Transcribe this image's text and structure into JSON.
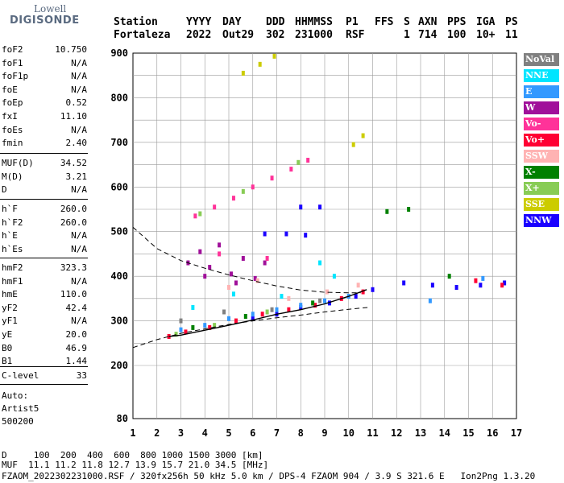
{
  "logo": {
    "top": "Lowell",
    "bottom": "DIGISONDE"
  },
  "header": {
    "labels": [
      "Station",
      "YYYY",
      "DAY",
      "DDD",
      "HHMMSS",
      "P1",
      "FFS",
      "S",
      "AXN",
      "PPS",
      "IGA",
      "PS"
    ],
    "values": [
      "Fortaleza",
      "2022",
      "Out29",
      "302",
      "231000",
      "RSF",
      "",
      "1",
      "714",
      "100",
      "10+",
      "11"
    ]
  },
  "params_group1": [
    {
      "name": "foF2",
      "value": "10.750"
    },
    {
      "name": "foF1",
      "value": "N/A"
    },
    {
      "name": "foF1p",
      "value": "N/A"
    },
    {
      "name": "foE",
      "value": "N/A"
    },
    {
      "name": "foEp",
      "value": "0.52"
    },
    {
      "name": "fxI",
      "value": "11.10"
    },
    {
      "name": "foEs",
      "value": "N/A"
    },
    {
      "name": "fmin",
      "value": "2.40"
    }
  ],
  "params_group2": [
    {
      "name": "MUF(D)",
      "value": "34.52"
    },
    {
      "name": "M(D)",
      "value": "3.21"
    },
    {
      "name": "D",
      "value": "N/A"
    }
  ],
  "params_group3": [
    {
      "name": "h`F",
      "value": "260.0"
    },
    {
      "name": "h`F2",
      "value": "260.0"
    },
    {
      "name": "h`E",
      "value": "N/A"
    },
    {
      "name": "h`Es",
      "value": "N/A"
    }
  ],
  "params_group4": [
    {
      "name": "hmF2",
      "value": "323.3"
    },
    {
      "name": "hmF1",
      "value": "N/A"
    },
    {
      "name": "hmE",
      "value": "110.0"
    },
    {
      "name": "yF2",
      "value": "42.4"
    },
    {
      "name": "yF1",
      "value": "N/A"
    },
    {
      "name": "yE",
      "value": "20.0"
    },
    {
      "name": "B0",
      "value": "46.9"
    },
    {
      "name": "B1",
      "value": "1.44"
    }
  ],
  "params_group5": [
    {
      "name": "C-level",
      "value": "33"
    }
  ],
  "auto_info": [
    "Auto:",
    "Artist5",
    "500200"
  ],
  "legend": [
    {
      "label": "NoVal",
      "color": "#808080"
    },
    {
      "label": "NNE",
      "color": "#00e5ff"
    },
    {
      "label": "E",
      "color": "#3399ff"
    },
    {
      "label": "W",
      "color": "#a0109a"
    },
    {
      "label": "Vo-",
      "color": "#ff3399"
    },
    {
      "label": "Vo+",
      "color": "#ff0033"
    },
    {
      "label": "SSW",
      "color": "#ffb3b3"
    },
    {
      "label": "X-",
      "color": "#008000"
    },
    {
      "label": "X+",
      "color": "#88cc55"
    },
    {
      "label": "SSE",
      "color": "#cccc00"
    },
    {
      "label": "NNW",
      "color": "#1a00ff"
    }
  ],
  "footer": {
    "d_row": "D     100  200  400  600  800 1000 1500 3000 [km]",
    "muf_row": "MUF  11.1 11.2 11.8 12.7 13.9 15.7 21.0 34.5 [MHz]",
    "info_row": "FZAOM_2022302231000.RSF / 320fx256h 50 kHz 5.0 km / DPS-4 FZAOM 904 / 3.9 S 321.6 E   Ion2Png 1.3.20"
  },
  "chart_data": {
    "type": "scatter",
    "title": "",
    "xlabel": "",
    "ylabel": "",
    "xlim": [
      1,
      17
    ],
    "ylim": [
      80,
      900
    ],
    "x_ticks": [
      "1",
      "2",
      "3",
      "4",
      "5",
      "6",
      "7",
      "8",
      "9",
      "10",
      "11",
      "12",
      "13",
      "14",
      "15",
      "16",
      "17"
    ],
    "y_ticks": [
      "80",
      "200",
      "300",
      "400",
      "500",
      "600",
      "700",
      "800",
      "900"
    ],
    "grid": true,
    "series": [
      {
        "name": "W",
        "color": "#a0109a",
        "points": [
          [
            3.3,
            430
          ],
          [
            3.8,
            455
          ],
          [
            4.2,
            420
          ],
          [
            4.6,
            470
          ],
          [
            5.1,
            405
          ],
          [
            5.6,
            440
          ],
          [
            6.1,
            395
          ],
          [
            6.5,
            430
          ],
          [
            4.0,
            400
          ],
          [
            5.3,
            385
          ]
        ]
      },
      {
        "name": "NNW",
        "color": "#1a00ff",
        "points": [
          [
            6.0,
            305
          ],
          [
            7.0,
            315
          ],
          [
            8.0,
            330
          ],
          [
            9.2,
            340
          ],
          [
            10.3,
            355
          ],
          [
            11.0,
            370
          ],
          [
            12.3,
            385
          ],
          [
            13.5,
            380
          ],
          [
            14.5,
            375
          ],
          [
            15.5,
            380
          ],
          [
            16.5,
            385
          ],
          [
            8.0,
            555
          ],
          [
            8.8,
            555
          ],
          [
            6.5,
            495
          ],
          [
            7.4,
            495
          ],
          [
            8.2,
            492
          ]
        ]
      },
      {
        "name": "Vo+",
        "color": "#ff0033",
        "points": [
          [
            2.5,
            265
          ],
          [
            3.2,
            275
          ],
          [
            4.2,
            285
          ],
          [
            5.3,
            300
          ],
          [
            6.4,
            315
          ],
          [
            7.5,
            325
          ],
          [
            8.6,
            335
          ],
          [
            9.7,
            350
          ],
          [
            10.6,
            365
          ],
          [
            15.3,
            390
          ],
          [
            16.4,
            380
          ]
        ]
      },
      {
        "name": "E",
        "color": "#3399ff",
        "points": [
          [
            3.0,
            280
          ],
          [
            4.0,
            290
          ],
          [
            5.0,
            305
          ],
          [
            6.0,
            315
          ],
          [
            7.0,
            325
          ],
          [
            8.0,
            335
          ],
          [
            9.0,
            345
          ],
          [
            10.0,
            355
          ],
          [
            13.4,
            345
          ],
          [
            15.6,
            395
          ]
        ]
      },
      {
        "name": "NNE",
        "color": "#00e5ff",
        "points": [
          [
            3.5,
            330
          ],
          [
            5.2,
            360
          ],
          [
            7.2,
            355
          ],
          [
            8.8,
            430
          ],
          [
            9.4,
            400
          ]
        ]
      },
      {
        "name": "Vo-",
        "color": "#ff3399",
        "points": [
          [
            3.6,
            535
          ],
          [
            4.4,
            555
          ],
          [
            5.2,
            575
          ],
          [
            6.0,
            600
          ],
          [
            6.8,
            620
          ],
          [
            7.6,
            640
          ],
          [
            8.3,
            660
          ],
          [
            4.6,
            450
          ],
          [
            6.6,
            440
          ]
        ]
      },
      {
        "name": "X+",
        "color": "#88cc55",
        "points": [
          [
            3.8,
            540
          ],
          [
            5.6,
            590
          ],
          [
            7.9,
            655
          ],
          [
            2.8,
            270
          ],
          [
            4.4,
            290
          ],
          [
            6.6,
            320
          ]
        ]
      },
      {
        "name": "SSE",
        "color": "#cccc00",
        "points": [
          [
            5.6,
            855
          ],
          [
            6.3,
            875
          ],
          [
            6.9,
            893
          ],
          [
            10.2,
            695
          ],
          [
            10.6,
            715
          ]
        ]
      },
      {
        "name": "SSW",
        "color": "#ffb3b3",
        "points": [
          [
            5.0,
            375
          ],
          [
            6.2,
            390
          ],
          [
            7.5,
            350
          ],
          [
            9.1,
            365
          ],
          [
            10.4,
            380
          ]
        ]
      },
      {
        "name": "X-",
        "color": "#008000",
        "points": [
          [
            3.5,
            285
          ],
          [
            5.7,
            310
          ],
          [
            8.5,
            340
          ],
          [
            11.6,
            545
          ],
          [
            12.5,
            550
          ],
          [
            14.2,
            400
          ]
        ]
      },
      {
        "name": "NoVal",
        "color": "#808080",
        "points": [
          [
            3.0,
            300
          ],
          [
            4.8,
            320
          ],
          [
            6.8,
            325
          ],
          [
            8.8,
            345
          ]
        ]
      }
    ],
    "curves": [
      {
        "name": "upper-dashed",
        "style": "dashed",
        "points": [
          [
            1.0,
            510
          ],
          [
            2.0,
            462
          ],
          [
            3.0,
            435
          ],
          [
            4.0,
            418
          ],
          [
            5.0,
            403
          ],
          [
            6.0,
            390
          ],
          [
            7.0,
            378
          ],
          [
            8.0,
            369
          ],
          [
            9.0,
            364
          ],
          [
            10.0,
            363
          ],
          [
            10.5,
            363
          ]
        ]
      },
      {
        "name": "lower-dashed",
        "style": "dashed",
        "points": [
          [
            1.0,
            240
          ],
          [
            2.0,
            258
          ],
          [
            3.0,
            272
          ],
          [
            4.0,
            282
          ],
          [
            5.0,
            292
          ],
          [
            6.0,
            300
          ],
          [
            7.0,
            307
          ],
          [
            8.0,
            313
          ],
          [
            9.0,
            320
          ],
          [
            10.0,
            326
          ],
          [
            10.8,
            330
          ]
        ]
      },
      {
        "name": "trace",
        "style": "solid",
        "points": [
          [
            2.5,
            265
          ],
          [
            3.0,
            268
          ],
          [
            4.0,
            279
          ],
          [
            5.0,
            290
          ],
          [
            6.0,
            302
          ],
          [
            7.0,
            315
          ],
          [
            8.0,
            325
          ],
          [
            9.0,
            338
          ],
          [
            10.0,
            355
          ],
          [
            10.75,
            370
          ]
        ]
      }
    ]
  }
}
